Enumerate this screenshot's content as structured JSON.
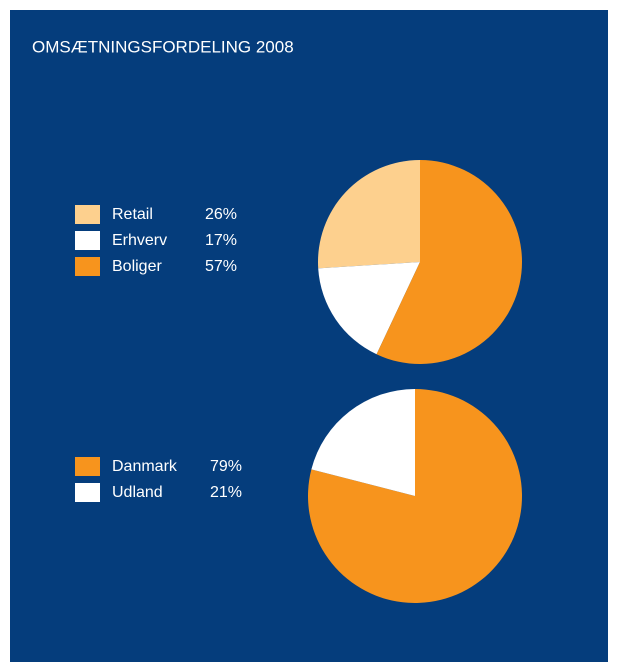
{
  "title": "OMSÆTNINGSFORDELING 2008",
  "chart_data": [
    {
      "type": "pie",
      "categories": [
        "Retail",
        "Erhverv",
        "Boliger"
      ],
      "values": [
        26,
        17,
        57
      ],
      "value_labels": [
        "26%",
        "17%",
        "57%"
      ],
      "colors": [
        "#fdd08e",
        "#ffffff",
        "#f7941d"
      ],
      "direction": "counterclockwise"
    },
    {
      "type": "pie",
      "categories": [
        "Danmark",
        "Udland"
      ],
      "values": [
        79,
        21
      ],
      "value_labels": [
        "79%",
        "21%"
      ],
      "colors": [
        "#f7941d",
        "#ffffff"
      ],
      "direction": "clockwise"
    }
  ]
}
